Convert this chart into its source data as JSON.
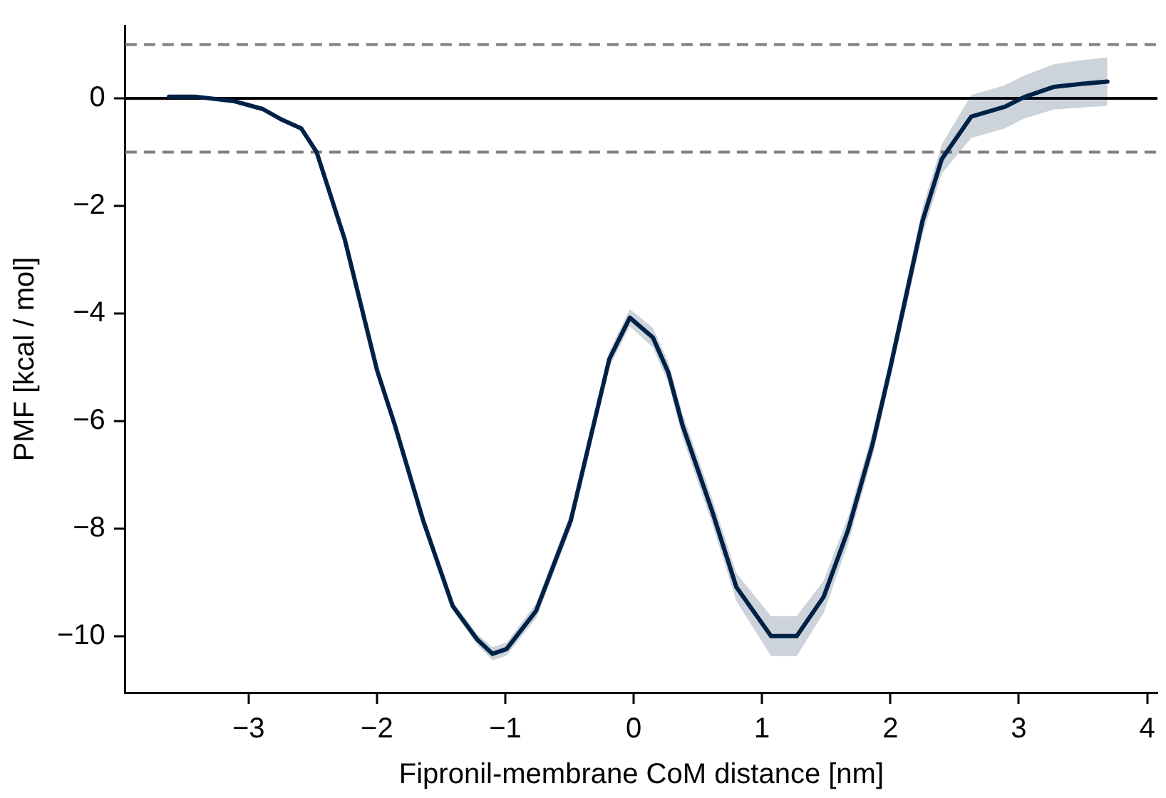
{
  "chart_data": {
    "type": "line",
    "xlabel": "Fipronil-membrane CoM distance [nm]",
    "ylabel": "PMF [kcal / mol]",
    "xlim": [
      -3.96,
      4.08
    ],
    "ylim": [
      -11.05,
      1.35
    ],
    "xticks": [
      {
        "value": -3,
        "label": "−3"
      },
      {
        "value": -2,
        "label": "−2"
      },
      {
        "value": -1,
        "label": "−1"
      },
      0,
      1,
      2,
      3,
      4
    ],
    "yticks": [
      {
        "value": -10,
        "label": "−10"
      },
      {
        "value": -8,
        "label": "−8"
      },
      {
        "value": -6,
        "label": "−6"
      },
      {
        "value": -4,
        "label": "−4"
      },
      {
        "value": -2,
        "label": "−2"
      },
      0
    ],
    "grid": false,
    "legend": false,
    "marker": "none",
    "line_style": "solid",
    "ref_lines": [
      {
        "axis": "y",
        "value": 0,
        "color": "#000000",
        "line_style": "solid"
      },
      {
        "axis": "y",
        "value": 1,
        "color": "#808080",
        "line_style": "dashed"
      },
      {
        "axis": "y",
        "value": -1,
        "color": "#808080",
        "line_style": "dashed"
      }
    ],
    "series": [
      {
        "color": "#002147",
        "x": [
          -3.62,
          -3.42,
          -3.12,
          -2.89,
          -2.74,
          -2.59,
          -2.47,
          -2.25,
          -2.0,
          -1.86,
          -1.64,
          -1.41,
          -1.22,
          -1.1,
          -0.99,
          -0.76,
          -0.49,
          -0.19,
          -0.03,
          0.15,
          0.27,
          0.38,
          0.61,
          0.8,
          1.07,
          1.27,
          1.48,
          1.67,
          1.86,
          2.0,
          2.25,
          2.4,
          2.63,
          2.89,
          3.04,
          3.27,
          3.5,
          3.69
        ],
        "values": [
          0.03,
          0.03,
          -0.05,
          -0.2,
          -0.4,
          -0.56,
          -1.0,
          -2.63,
          -5.05,
          -6.08,
          -7.85,
          -9.44,
          -10.06,
          -10.33,
          -10.24,
          -9.53,
          -7.85,
          -4.85,
          -4.08,
          -4.45,
          -5.1,
          -6.08,
          -7.67,
          -9.09,
          -10.0,
          -10.0,
          -9.27,
          -8.03,
          -6.44,
          -5.0,
          -2.28,
          -1.13,
          -0.34,
          -0.16,
          0.02,
          0.21,
          0.27,
          0.31
        ],
        "lower": [
          0.0,
          0.0,
          -0.08,
          -0.23,
          -0.43,
          -0.6,
          -1.04,
          -2.68,
          -5.1,
          -6.14,
          -7.92,
          -9.52,
          -10.16,
          -10.45,
          -10.36,
          -9.67,
          -8.0,
          -5.0,
          -4.24,
          -4.63,
          -5.3,
          -6.3,
          -7.9,
          -9.35,
          -10.37,
          -10.37,
          -9.57,
          -8.28,
          -6.66,
          -5.2,
          -2.53,
          -1.4,
          -0.74,
          -0.56,
          -0.38,
          -0.21,
          -0.17,
          -0.14
        ],
        "upper": [
          0.06,
          0.06,
          -0.02,
          -0.17,
          -0.37,
          -0.52,
          -0.96,
          -2.58,
          -5.0,
          -6.02,
          -7.78,
          -9.36,
          -9.96,
          -10.21,
          -10.12,
          -9.39,
          -7.7,
          -4.7,
          -3.92,
          -4.27,
          -4.9,
          -5.86,
          -7.44,
          -8.83,
          -9.63,
          -9.63,
          -8.97,
          -7.78,
          -6.22,
          -4.8,
          -2.03,
          -0.86,
          0.06,
          0.24,
          0.42,
          0.63,
          0.71,
          0.76
        ]
      }
    ]
  }
}
